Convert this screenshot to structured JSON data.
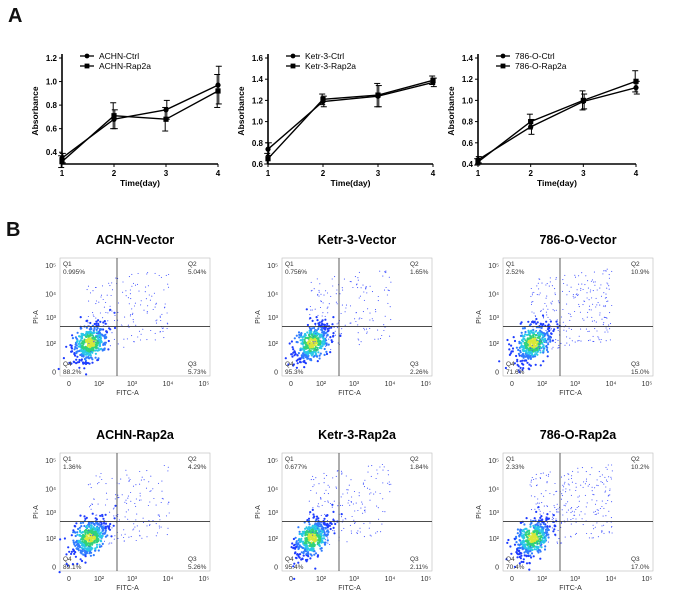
{
  "panels": {
    "a": "A",
    "b": "B"
  },
  "chart_data": [
    {
      "type": "line",
      "xlabel": "Time(day)",
      "ylabel": "Absorbance",
      "xlim": [
        1,
        4
      ],
      "ylim": [
        0.3,
        1.2
      ],
      "x_ticks": [
        "1",
        "2",
        "3",
        "4"
      ],
      "y_ticks": [
        "0.4",
        "0.6",
        "0.8",
        "1.0",
        "1.2"
      ],
      "series": [
        {
          "name": "ACHN-Ctrl",
          "marker": "circle",
          "x": [
            1,
            2,
            3,
            4
          ],
          "y": [
            0.35,
            0.68,
            0.76,
            0.97
          ],
          "err": [
            0.04,
            0.08,
            0.08,
            0.16
          ]
        },
        {
          "name": "ACHN-Rap2a",
          "marker": "square",
          "x": [
            1,
            2,
            3,
            4
          ],
          "y": [
            0.32,
            0.71,
            0.68,
            0.92
          ],
          "err": [
            0.05,
            0.11,
            0.1,
            0.14
          ]
        }
      ]
    },
    {
      "type": "line",
      "xlabel": "Time(day)",
      "ylabel": "Absorbance",
      "xlim": [
        1,
        4
      ],
      "ylim": [
        0.6,
        1.6
      ],
      "x_ticks": [
        "1",
        "2",
        "3",
        "4"
      ],
      "y_ticks": [
        "0.6",
        "0.8",
        "1.0",
        "1.2",
        "1.4",
        "1.6"
      ],
      "series": [
        {
          "name": "Ketr-3-Ctrl",
          "marker": "circle",
          "x": [
            1,
            2,
            3,
            4
          ],
          "y": [
            0.74,
            1.19,
            1.24,
            1.37
          ],
          "err": [
            0.06,
            0.05,
            0.1,
            0.04
          ]
        },
        {
          "name": "Ketr-3-Rap2a",
          "marker": "square",
          "x": [
            1,
            2,
            3,
            4
          ],
          "y": [
            0.65,
            1.21,
            1.25,
            1.39
          ],
          "err": [
            0.05,
            0.05,
            0.11,
            0.04
          ]
        }
      ]
    },
    {
      "type": "line",
      "xlabel": "Time(day)",
      "ylabel": "Absorbance",
      "xlim": [
        1,
        4
      ],
      "ylim": [
        0.4,
        1.4
      ],
      "x_ticks": [
        "1",
        "2",
        "3",
        "4"
      ],
      "y_ticks": [
        "0.4",
        "0.6",
        "0.8",
        "1.0",
        "1.2",
        "1.4"
      ],
      "series": [
        {
          "name": "786-O-Ctrl",
          "marker": "circle",
          "x": [
            1,
            2,
            3,
            4
          ],
          "y": [
            0.44,
            0.75,
            0.99,
            1.12
          ],
          "err": [
            0.03,
            0.07,
            0.07,
            0.06
          ]
        },
        {
          "name": "786-O-Rap2a",
          "marker": "square",
          "x": [
            1,
            2,
            3,
            4
          ],
          "y": [
            0.42,
            0.8,
            1.0,
            1.18
          ],
          "err": [
            0.03,
            0.07,
            0.09,
            0.1
          ]
        }
      ]
    },
    {
      "type": "scatter",
      "title": "ACHN-Vector",
      "xlabel": "FITC-A",
      "ylabel": "PI-A",
      "x_ticks": [
        "0",
        "10²",
        "10³",
        "10⁴",
        "10⁵"
      ],
      "y_ticks": [
        "0",
        "10²",
        "10³",
        "10⁴",
        "10⁵"
      ],
      "quadrants": {
        "Q1": "0.995%",
        "Q2": "5.04%",
        "Q3": "5.73%",
        "Q4": "88.2%"
      }
    },
    {
      "type": "scatter",
      "title": "Ketr-3-Vector",
      "xlabel": "FITC-A",
      "ylabel": "PI-A",
      "x_ticks": [
        "0",
        "10²",
        "10³",
        "10⁴",
        "10⁵"
      ],
      "y_ticks": [
        "0",
        "10²",
        "10³",
        "10⁴",
        "10⁵"
      ],
      "quadrants": {
        "Q1": "0.756%",
        "Q2": "1.65%",
        "Q3": "2.26%",
        "Q4": "95.3%"
      }
    },
    {
      "type": "scatter",
      "title": "786-O-Vector",
      "xlabel": "FITC-A",
      "ylabel": "PI-A",
      "x_ticks": [
        "0",
        "10²",
        "10³",
        "10⁴",
        "10⁵"
      ],
      "y_ticks": [
        "0",
        "10²",
        "10³",
        "10⁴",
        "10⁵"
      ],
      "quadrants": {
        "Q1": "2.52%",
        "Q2": "10.9%",
        "Q3": "15.0%",
        "Q4": "71.6%"
      }
    },
    {
      "type": "scatter",
      "title": "ACHN-Rap2a",
      "xlabel": "FITC-A",
      "ylabel": "PI-A",
      "x_ticks": [
        "0",
        "10²",
        "10³",
        "10⁴",
        "10⁵"
      ],
      "y_ticks": [
        "0",
        "10²",
        "10³",
        "10⁴",
        "10⁵"
      ],
      "quadrants": {
        "Q1": "1.36%",
        "Q2": "4.29%",
        "Q3": "5.26%",
        "Q4": "89.1%"
      }
    },
    {
      "type": "scatter",
      "title": "Ketr-3-Rap2a",
      "xlabel": "FITC-A",
      "ylabel": "PI-A",
      "x_ticks": [
        "0",
        "10²",
        "10³",
        "10⁴",
        "10⁵"
      ],
      "y_ticks": [
        "0",
        "10²",
        "10³",
        "10⁴",
        "10⁵"
      ],
      "quadrants": {
        "Q1": "0.677%",
        "Q2": "1.84%",
        "Q3": "2.11%",
        "Q4": "95.4%"
      }
    },
    {
      "type": "scatter",
      "title": "786-O-Rap2a",
      "xlabel": "FITC-A",
      "ylabel": "PI-A",
      "x_ticks": [
        "0",
        "10²",
        "10³",
        "10⁴",
        "10⁵"
      ],
      "y_ticks": [
        "0",
        "10²",
        "10³",
        "10⁴",
        "10⁵"
      ],
      "quadrants": {
        "Q1": "2.33%",
        "Q2": "10.2%",
        "Q3": "17.0%",
        "Q4": "70.4%"
      }
    }
  ]
}
